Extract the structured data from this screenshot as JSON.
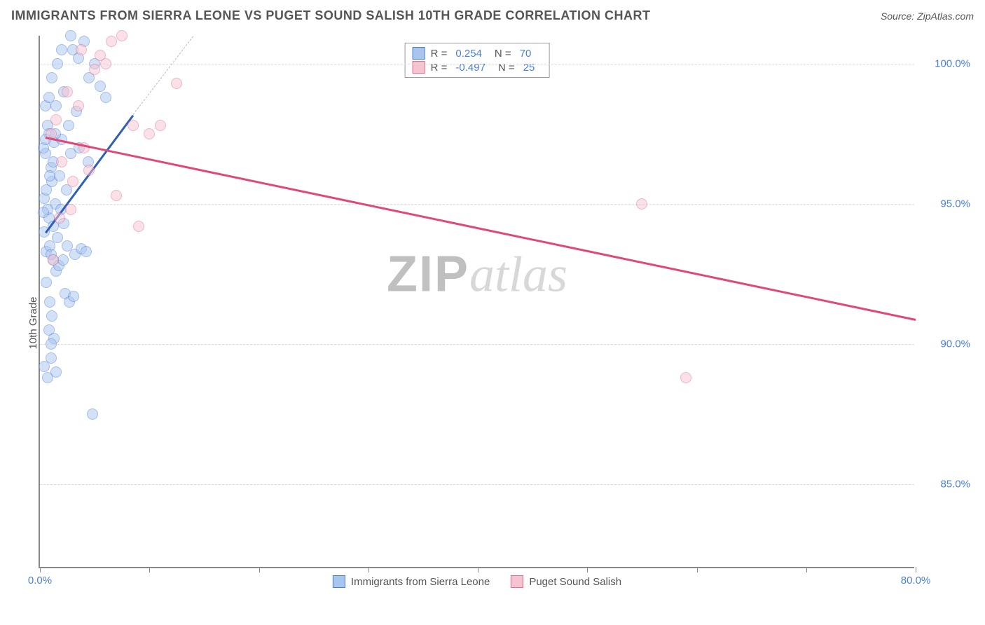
{
  "title": "IMMIGRANTS FROM SIERRA LEONE VS PUGET SOUND SALISH 10TH GRADE CORRELATION CHART",
  "source": "Source: ZipAtlas.com",
  "ylabel": "10th Grade",
  "watermark_bold": "ZIP",
  "watermark_italic": "atlas",
  "chart": {
    "type": "scatter",
    "xlim": [
      0,
      80
    ],
    "ylim": [
      82,
      101
    ],
    "x_ticks": [
      0,
      10,
      20,
      30,
      40,
      50,
      60,
      70,
      80
    ],
    "x_tick_labels": {
      "0": "0.0%",
      "80": "80.0%"
    },
    "y_ticks": [
      85,
      90,
      95,
      100
    ],
    "y_tick_labels": {
      "85": "85.0%",
      "90": "90.0%",
      "95": "95.0%",
      "100": "100.0%"
    },
    "background_color": "#ffffff",
    "grid_color": "#dddddd",
    "axis_color": "#888888",
    "label_color": "#4a7fd8",
    "marker_size": 16,
    "marker_opacity": 0.5,
    "series": [
      {
        "name": "Immigrants from Sierra Leone",
        "color_fill": "#a8c5f0",
        "color_stroke": "#4a7fd8",
        "trend_color": "#2c5fb5",
        "r": "0.254",
        "n": "70",
        "trend": {
          "x1": 0.5,
          "y1": 94.0,
          "x2": 8.5,
          "y2": 98.2
        },
        "dash_ext": {
          "x1": 8.5,
          "y1": 98.2,
          "x2": 14.0,
          "y2": 101.0
        },
        "points": [
          [
            0.4,
            95.2
          ],
          [
            0.6,
            93.3
          ],
          [
            0.8,
            94.5
          ],
          [
            1.0,
            96.3
          ],
          [
            1.2,
            93.0
          ],
          [
            1.5,
            92.6
          ],
          [
            0.5,
            96.8
          ],
          [
            0.7,
            97.8
          ],
          [
            0.9,
            91.5
          ],
          [
            1.1,
            95.8
          ],
          [
            1.3,
            97.2
          ],
          [
            1.6,
            93.8
          ],
          [
            0.4,
            94.0
          ],
          [
            0.6,
            92.2
          ],
          [
            0.8,
            90.5
          ],
          [
            1.0,
            89.5
          ],
          [
            1.2,
            96.5
          ],
          [
            1.4,
            95.0
          ],
          [
            0.5,
            98.5
          ],
          [
            0.7,
            94.8
          ],
          [
            0.9,
            93.5
          ],
          [
            1.1,
            91.0
          ],
          [
            1.3,
            90.2
          ],
          [
            1.5,
            89.0
          ],
          [
            0.3,
            97.0
          ],
          [
            0.6,
            95.5
          ],
          [
            0.8,
            97.5
          ],
          [
            1.0,
            93.2
          ],
          [
            1.2,
            94.2
          ],
          [
            1.8,
            96.0
          ],
          [
            2.0,
            97.3
          ],
          [
            2.2,
            94.3
          ],
          [
            2.5,
            93.5
          ],
          [
            2.8,
            96.8
          ],
          [
            3.0,
            100.5
          ],
          [
            3.5,
            100.2
          ],
          [
            4.0,
            100.8
          ],
          [
            4.5,
            99.5
          ],
          [
            5.0,
            100.0
          ],
          [
            5.5,
            99.2
          ],
          [
            6.0,
            98.8
          ],
          [
            3.2,
            93.2
          ],
          [
            3.8,
            93.4
          ],
          [
            4.2,
            93.3
          ],
          [
            2.3,
            91.8
          ],
          [
            2.7,
            91.5
          ],
          [
            3.1,
            91.7
          ],
          [
            1.7,
            92.8
          ],
          [
            2.1,
            93.0
          ],
          [
            0.4,
            89.2
          ],
          [
            0.7,
            88.8
          ],
          [
            1.0,
            90.0
          ],
          [
            4.8,
            87.5
          ],
          [
            2.4,
            95.5
          ],
          [
            3.6,
            97.0
          ],
          [
            4.4,
            96.5
          ],
          [
            1.9,
            94.8
          ],
          [
            2.6,
            97.8
          ],
          [
            3.3,
            98.3
          ],
          [
            1.4,
            97.5
          ],
          [
            0.5,
            97.3
          ],
          [
            0.8,
            98.8
          ],
          [
            1.1,
            99.5
          ],
          [
            1.6,
            100.0
          ],
          [
            2.0,
            100.5
          ],
          [
            2.8,
            101.0
          ],
          [
            0.3,
            94.7
          ],
          [
            0.9,
            96.0
          ],
          [
            1.5,
            98.5
          ],
          [
            2.2,
            99.0
          ]
        ]
      },
      {
        "name": "Puget Sound Salish",
        "color_fill": "#f5c4d0",
        "color_stroke": "#e86b8f",
        "trend_color": "#e04875",
        "r": "-0.497",
        "n": "25",
        "trend": {
          "x1": 0.5,
          "y1": 97.4,
          "x2": 80.0,
          "y2": 90.9
        },
        "points": [
          [
            1.0,
            97.5
          ],
          [
            1.5,
            98.0
          ],
          [
            2.0,
            96.5
          ],
          [
            2.5,
            99.0
          ],
          [
            3.0,
            95.8
          ],
          [
            3.5,
            98.5
          ],
          [
            4.0,
            97.0
          ],
          [
            5.0,
            99.8
          ],
          [
            5.5,
            100.3
          ],
          [
            6.0,
            100.0
          ],
          [
            6.5,
            100.8
          ],
          [
            7.5,
            101.0
          ],
          [
            8.5,
            97.8
          ],
          [
            10.0,
            97.5
          ],
          [
            9.0,
            94.2
          ],
          [
            11.0,
            97.8
          ],
          [
            12.5,
            99.3
          ],
          [
            7.0,
            95.3
          ],
          [
            4.5,
            96.2
          ],
          [
            2.8,
            94.8
          ],
          [
            1.8,
            94.5
          ],
          [
            1.2,
            93.0
          ],
          [
            55.0,
            95.0
          ],
          [
            59.0,
            88.8
          ],
          [
            3.8,
            100.5
          ]
        ]
      }
    ]
  },
  "legend_labels": {
    "r_prefix": "R =",
    "n_prefix": "N ="
  }
}
